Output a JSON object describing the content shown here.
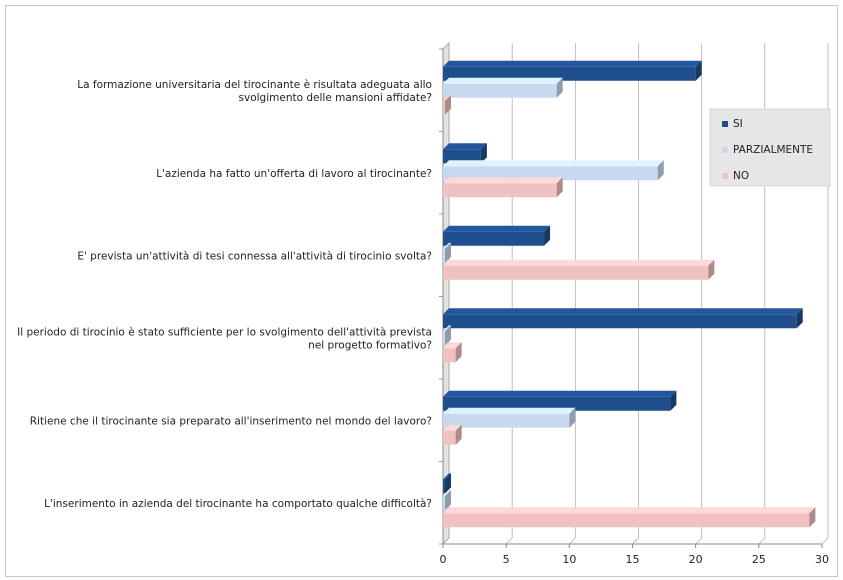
{
  "chart_data": {
    "type": "bar",
    "orientation": "horizontal",
    "categories": [
      "La formazione universitaria del tirocinante è risultata adeguata allo svolgimento delle mansioni affidate?",
      "L'azienda ha fatto un'offerta di lavoro al tirocinante?",
      "E' prevista un'attività di tesi connessa all'attività di tirocinio svolta?",
      "Il periodo di tirocinio è stato sufficiente per lo svolgimento dell'attività prevista nel progetto formativo?",
      "Ritiene che il tirocinante sia preparato all'inserimento nel mondo del lavoro?",
      "L'inserimento in azienda del tirocinante ha comportato qualche difficoltà?"
    ],
    "category_lines": [
      [
        "La formazione universitaria del tirocinante è risultata adeguata allo",
        "svolgimento delle mansioni affidate?"
      ],
      [
        "L'azienda ha fatto un'offerta di lavoro al tirocinante?"
      ],
      [
        "E' prevista un'attività di tesi connessa all'attività di tirocinio svolta?"
      ],
      [
        "Il periodo di tirocinio è stato sufficiente per lo svolgimento dell'attività prevista",
        "nel progetto formativo?"
      ],
      [
        "Ritiene che il tirocinante sia preparato all'inserimento nel mondo del lavoro?"
      ],
      [
        "L'inserimento in azienda del tirocinante ha comportato qualche difficoltà?"
      ]
    ],
    "series": [
      {
        "name": "SI",
        "color": "#1f4e8c",
        "values": [
          20,
          3,
          8,
          28,
          18,
          0
        ]
      },
      {
        "name": "PARZIALMENTE",
        "color": "#c6d9ee",
        "values": [
          9,
          17,
          0,
          0,
          10,
          0
        ]
      },
      {
        "name": "NO",
        "color": "#efc1c1",
        "values": [
          0,
          9,
          21,
          1,
          1,
          29
        ]
      }
    ],
    "xlim": [
      0,
      30
    ],
    "xticks": [
      0,
      5,
      10,
      15,
      20,
      25,
      30
    ],
    "grid": true,
    "legend_position": "right",
    "style": "3d"
  }
}
